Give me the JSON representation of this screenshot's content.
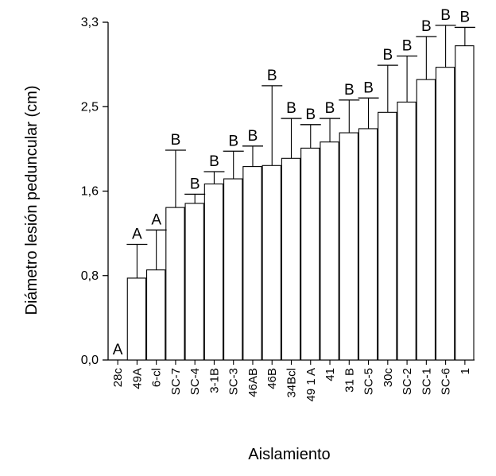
{
  "chart_data": {
    "type": "bar",
    "xlabel": "Aislamiento",
    "ylabel": "Diámetro lesión peduncular (cm)",
    "ylim": [
      0,
      3.3
    ],
    "yticks": [
      "0,0",
      "0,8",
      "1,6",
      "2,5",
      "3,3"
    ],
    "ytick_values": [
      0,
      0.825,
      1.65,
      2.475,
      3.3
    ],
    "grid": false,
    "error_bars": "upper",
    "categories": [
      "28c",
      "49A",
      "6-cl",
      "SC-7",
      "SC-4",
      "3-1B",
      "SC-3",
      "46AB",
      "46B",
      "34Bcl",
      "49 1 A",
      "41",
      "31 B",
      "SC-5",
      "30c",
      "SC-2",
      "SC-1",
      "SC-6",
      "1"
    ],
    "values": [
      0.0,
      0.8,
      0.88,
      1.49,
      1.53,
      1.72,
      1.77,
      1.89,
      1.9,
      1.97,
      2.07,
      2.13,
      2.22,
      2.26,
      2.42,
      2.52,
      2.74,
      2.86,
      3.07
    ],
    "error_upper": [
      0.0,
      1.13,
      1.27,
      2.05,
      1.62,
      1.84,
      2.04,
      2.09,
      2.68,
      2.36,
      2.3,
      2.36,
      2.54,
      2.56,
      2.88,
      2.97,
      3.16,
      3.27,
      3.25
    ],
    "significance_letters": [
      "A",
      "A",
      "A",
      "B",
      "B",
      "B",
      "B",
      "B",
      "B",
      "B",
      "B",
      "B",
      "B",
      "B",
      "B",
      "B",
      "B",
      "B",
      "B"
    ]
  }
}
